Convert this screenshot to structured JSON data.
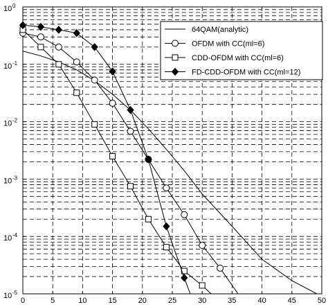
{
  "chart_data": {
    "type": "line",
    "title": "",
    "xlabel": "",
    "ylabel": "",
    "xlim": [
      0,
      50
    ],
    "ylim": [
      1e-05,
      1
    ],
    "yscale": "log",
    "grid": true,
    "legend_position": "top-right",
    "x_ticks": [
      "0",
      "5",
      "10",
      "15",
      "20",
      "25",
      "30",
      "35",
      "40",
      "45",
      "50"
    ],
    "y_ticks": [
      {
        "base": "10",
        "exp": "0",
        "value": 1
      },
      {
        "base": "10",
        "exp": "-1",
        "value": 0.1
      },
      {
        "base": "10",
        "exp": "-2",
        "value": 0.01
      },
      {
        "base": "10",
        "exp": "-3",
        "value": 0.001
      },
      {
        "base": "10",
        "exp": "-4",
        "value": 0.0001
      },
      {
        "base": "10",
        "exp": "-5",
        "value": 1e-05
      }
    ],
    "series": [
      {
        "name": "64QAM(analytic)",
        "marker": "none",
        "x": [
          0,
          3,
          6,
          9,
          12,
          15,
          18,
          21,
          24,
          27,
          30,
          35,
          40,
          45,
          50
        ],
        "y": [
          0.17,
          0.14,
          0.11,
          0.08,
          0.052,
          0.03,
          0.016,
          0.0075,
          0.0033,
          0.0014,
          0.00055,
          0.00015,
          4e-05,
          1.7e-05,
          9e-06
        ]
      },
      {
        "name": "OFDM with CC(ml=6)",
        "marker": "circle",
        "x": [
          0,
          3,
          6,
          9,
          12,
          15,
          18,
          21,
          24,
          27,
          30,
          33,
          36
        ],
        "y": [
          0.35,
          0.3,
          0.2,
          0.11,
          0.053,
          0.021,
          0.0068,
          0.0022,
          0.0007,
          0.00024,
          7e-05,
          2.8e-05,
          1e-05
        ]
      },
      {
        "name": "CDD-OFDM with CC(ml=6)",
        "marker": "square",
        "x": [
          0,
          3,
          6,
          9,
          12,
          15,
          18,
          21,
          24,
          27,
          30,
          31.5
        ],
        "y": [
          0.4,
          0.2,
          0.1,
          0.032,
          0.009,
          0.0025,
          0.00075,
          0.0002,
          6.5e-05,
          2.5e-05,
          1.4e-05,
          1e-05
        ]
      },
      {
        "name": "FD-CDD-OFDM with CC(ml=12)",
        "marker": "diamond",
        "x": [
          0,
          3,
          6,
          9,
          12,
          15,
          18,
          21,
          24,
          27,
          28
        ],
        "y": [
          0.48,
          0.45,
          0.4,
          0.35,
          0.2,
          0.075,
          0.016,
          0.0022,
          0.00015,
          1.9e-05,
          1e-05
        ]
      }
    ]
  }
}
